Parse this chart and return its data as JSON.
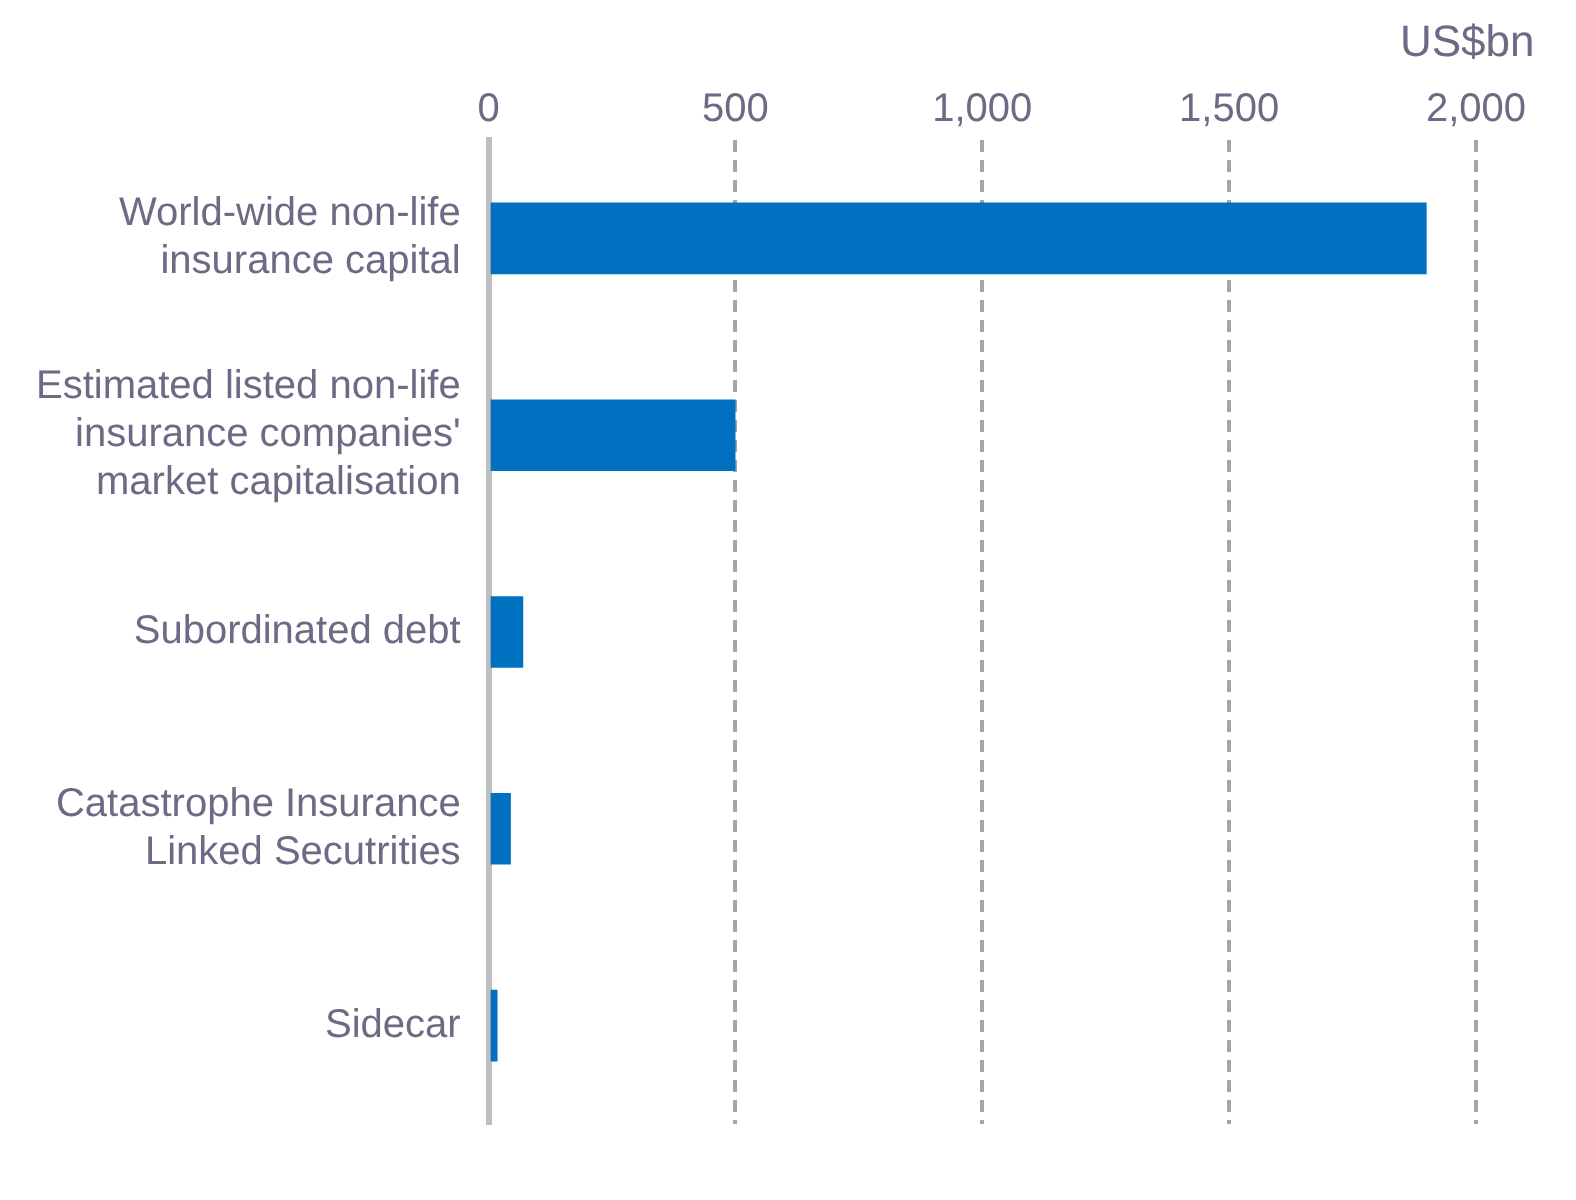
{
  "chart_data": {
    "type": "bar",
    "orientation": "horizontal",
    "xlabel": "US$bn",
    "categories": [
      "World-wide non-life insurance capital",
      "Estimated listed non-life insurance companies' market capitalisation",
      "Subordinated debt",
      "Catastrophe Insurance Linked Secutrities",
      "Sidecar"
    ],
    "values": [
      1900,
      500,
      70,
      45,
      18
    ],
    "color": "#0070c0",
    "xlim": [
      0,
      2000
    ],
    "xticks": [
      0,
      {
        "value": 500,
        "label": "500"
      },
      {
        "value": 1000,
        "label": "1,000"
      },
      {
        "value": 1500,
        "label": "1,500"
      },
      {
        "value": 2000,
        "label": "2,000"
      }
    ],
    "grid": "x",
    "legend": false
  }
}
